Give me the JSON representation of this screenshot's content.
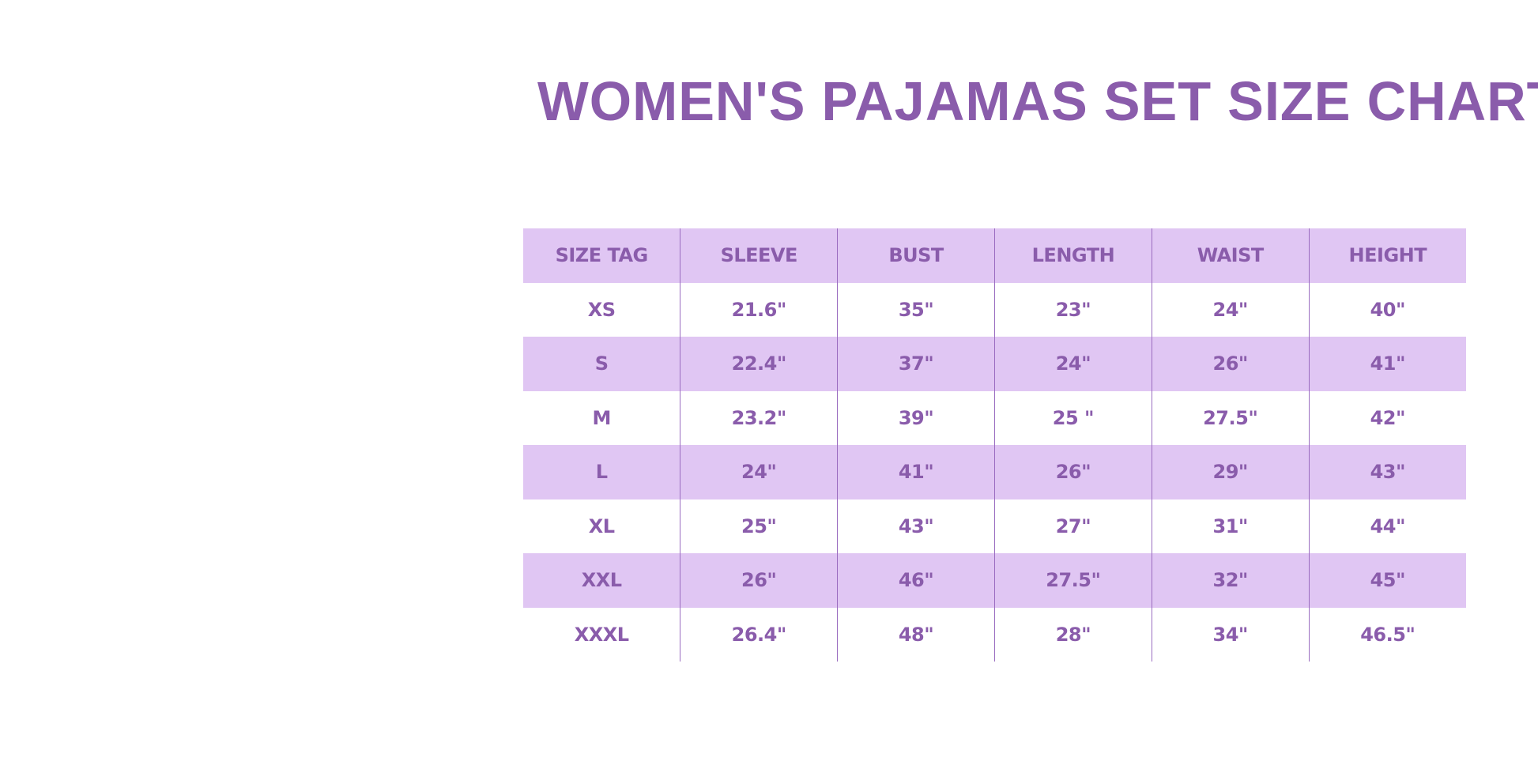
{
  "title": "WOMEN'S PAJAMAS SET SIZE CHART",
  "colors": {
    "text": "#8a5cab",
    "shade": "#e0c6f3",
    "divider": "#9a6cc0"
  },
  "table": {
    "headers": [
      "SIZE TAG",
      "SLEEVE",
      "BUST",
      "LENGTH",
      "WAIST",
      "HEIGHT"
    ],
    "rows": [
      [
        "XS",
        "21.6\"",
        "35\"",
        "23\"",
        "24\"",
        "40\""
      ],
      [
        "S",
        "22.4\"",
        "37\"",
        "24\"",
        "26\"",
        "41\""
      ],
      [
        "M",
        "23.2\"",
        "39\"",
        "25 \"",
        "27.5\"",
        "42\""
      ],
      [
        "L",
        "24\"",
        "41\"",
        "26\"",
        "29\"",
        "43\""
      ],
      [
        "XL",
        "25\"",
        "43\"",
        "27\"",
        "31\"",
        "44\""
      ],
      [
        "XXL",
        "26\"",
        "46\"",
        "27.5\"",
        "32\"",
        "45\""
      ],
      [
        "XXXL",
        "26.4\"",
        "48\"",
        "28\"",
        "34\"",
        "46.5\""
      ]
    ]
  }
}
